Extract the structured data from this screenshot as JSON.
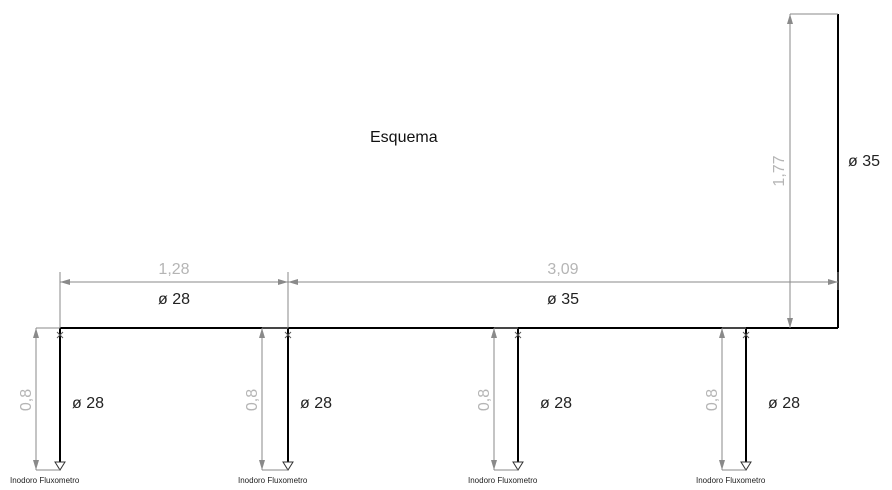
{
  "title": "Esquema",
  "riser": {
    "length": "1,77",
    "diameter": "ø 35"
  },
  "main_pipe": [
    {
      "length": "1,28",
      "diameter": "ø 28"
    },
    {
      "length": "3,09",
      "diameter": "ø 35"
    }
  ],
  "branches": [
    {
      "length": "0,8",
      "diameter": "ø 28",
      "fixture": "Inodoro Fluxometro"
    },
    {
      "length": "0,8",
      "diameter": "ø 28",
      "fixture": "Inodoro Fluxometro"
    },
    {
      "length": "0,8",
      "diameter": "ø 28",
      "fixture": "Inodoro Fluxometro"
    },
    {
      "length": "0,8",
      "diameter": "ø 28",
      "fixture": "Inodoro Fluxometro"
    }
  ],
  "colors": {
    "pipe": "#000000",
    "dimension": "#8a8a8a",
    "dimension_text": "#b5b5b5"
  }
}
